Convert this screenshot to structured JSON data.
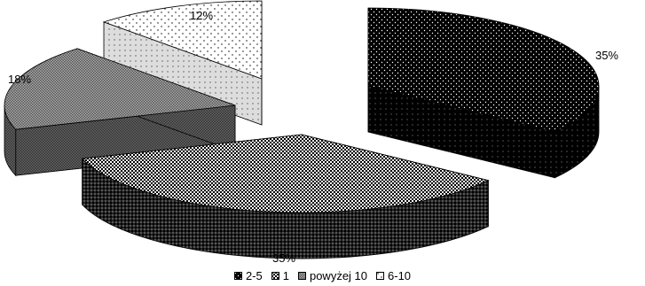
{
  "chart_data": {
    "type": "pie",
    "style": "3d-exploded",
    "slices": [
      {
        "label": "2-5",
        "value": 35,
        "value_label": "35%",
        "pattern": "dark-dotted",
        "color": "#000000"
      },
      {
        "label": "1",
        "value": 35,
        "value_label": "35%",
        "pattern": "dense-checker",
        "color": "#333333"
      },
      {
        "label": "powyżej 10",
        "value": 18,
        "value_label": "18%",
        "pattern": "medium-checker",
        "color": "#777777"
      },
      {
        "label": "6-10",
        "value": 12,
        "value_label": "12%",
        "pattern": "light-dotted",
        "color": "#ffffff"
      }
    ],
    "legend_position": "bottom"
  }
}
